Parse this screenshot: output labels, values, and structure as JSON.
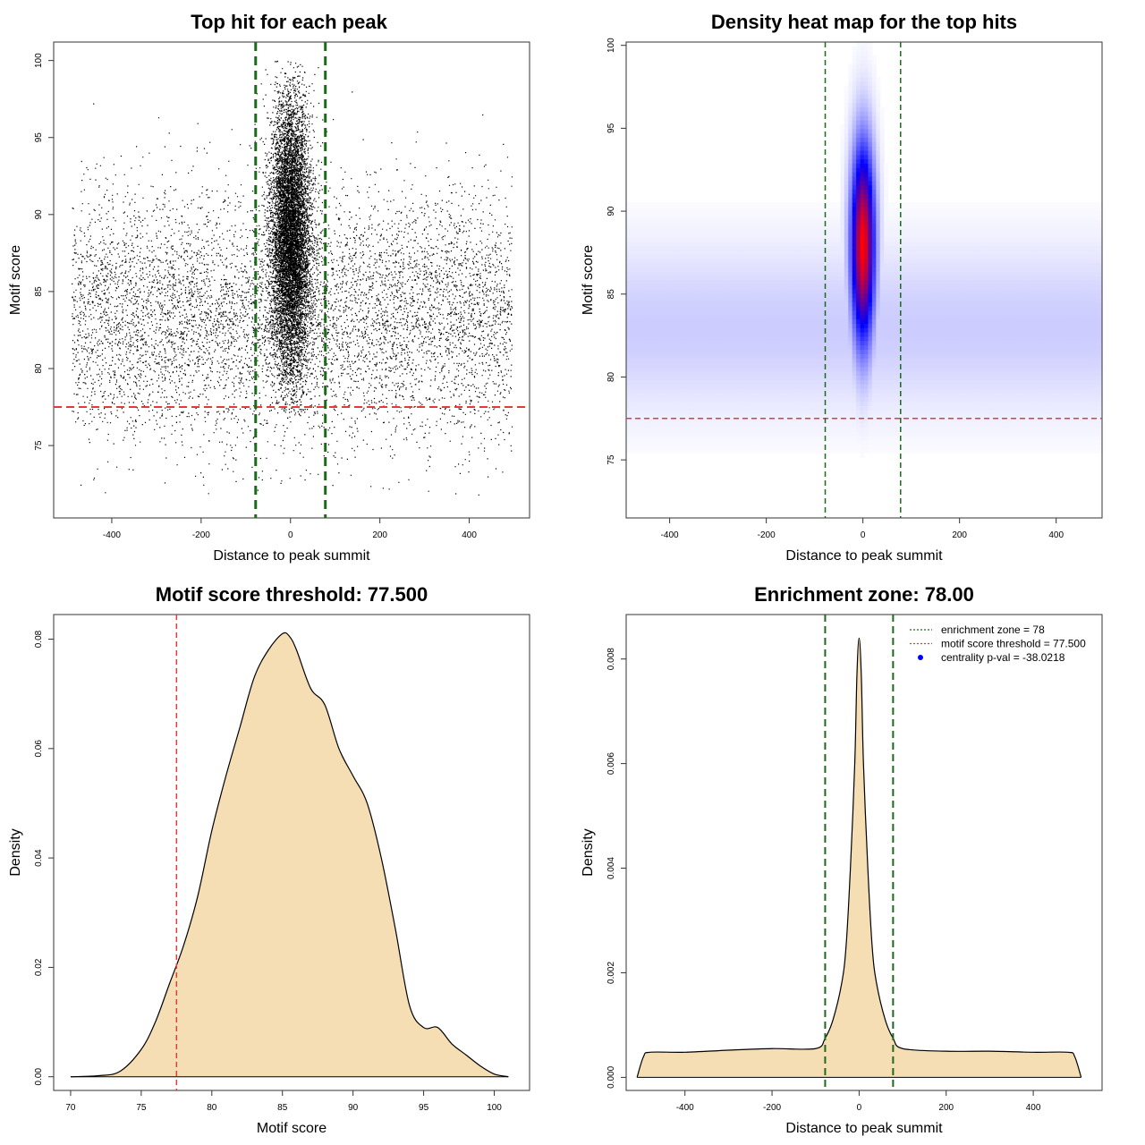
{
  "colors": {
    "threshold": "#e03c3c",
    "zone": "#1a6b1a",
    "fill": "#f5deb3",
    "points": "#000000",
    "heat_low": "#ffffff",
    "heat_mid": "#0000ff",
    "heat_high": "#ff0000",
    "legend_dot": "#0000ff"
  },
  "chart_data": [
    {
      "id": "scatter",
      "type": "scatter",
      "title": "Top hit for each peak",
      "xlabel": "Distance to peak summit",
      "ylabel": "Motif score",
      "xlim": [
        -530,
        535
      ],
      "ylim": [
        70.3,
        101.2
      ],
      "xticks": [
        -400,
        -200,
        0,
        200,
        400
      ],
      "xtick_labels": [
        "-400",
        "-200",
        "0",
        "200",
        "400"
      ],
      "yticks": [
        75,
        80,
        85,
        90,
        95,
        100
      ],
      "ytick_labels": [
        "75",
        "80",
        "85",
        "90",
        "95",
        "100"
      ],
      "hline": 77.5,
      "vlines": [
        -78,
        78
      ],
      "background": {
        "x_range": [
          -490,
          495
        ],
        "y_center": 83.5,
        "y_sd": 4.0,
        "n": 7000
      },
      "center": {
        "x_sd": 22,
        "y_center": 88.5,
        "y_sd": 4.5,
        "y_range": [
          77.0,
          100.0
        ],
        "n": 9000
      }
    },
    {
      "id": "heatmap",
      "type": "heatmap",
      "title": "Density heat map for the top hits",
      "xlabel": "Distance to peak summit",
      "ylabel": "Motif score",
      "xlim": [
        -490,
        495
      ],
      "ylim": [
        71.5,
        100.2
      ],
      "xticks": [
        -400,
        -200,
        0,
        200,
        400
      ],
      "xtick_labels": [
        "-400",
        "-200",
        "0",
        "200",
        "400"
      ],
      "yticks": [
        75,
        80,
        85,
        90,
        95,
        100
      ],
      "ytick_labels": [
        "75",
        "80",
        "85",
        "90",
        "95",
        "100"
      ],
      "hline": 77.5,
      "vlines": [
        -78,
        78
      ],
      "peak": {
        "x": 0,
        "y": 88.0,
        "x_sd": 17,
        "y_sd": 4.2
      },
      "background": {
        "y_center": 83.0,
        "y_sd": 3.5,
        "level": 0.1
      }
    },
    {
      "id": "score-density",
      "type": "area",
      "title": "Motif score threshold: 77.500",
      "xlabel": "Motif score",
      "ylabel": "Density",
      "xlim": [
        68.8,
        102.5
      ],
      "ylim": [
        -0.0025,
        0.0845
      ],
      "xticks": [
        70,
        75,
        80,
        85,
        90,
        95,
        100
      ],
      "xtick_labels": [
        "70",
        "75",
        "80",
        "85",
        "90",
        "95",
        "100"
      ],
      "yticks": [
        0,
        0.02,
        0.04,
        0.06,
        0.08
      ],
      "ytick_labels": [
        "0.00",
        "0.02",
        "0.04",
        "0.06",
        "0.08"
      ],
      "vline": 77.5,
      "x": [
        70,
        72,
        73.5,
        75,
        76,
        77,
        78,
        79,
        80,
        81,
        82,
        83,
        84,
        85,
        85.5,
        86,
        87,
        88,
        89,
        90,
        91,
        92,
        93,
        94,
        95,
        96,
        97,
        98,
        99,
        100,
        101
      ],
      "y": [
        0.0,
        0.0002,
        0.001,
        0.005,
        0.01,
        0.017,
        0.024,
        0.033,
        0.045,
        0.055,
        0.064,
        0.073,
        0.078,
        0.081,
        0.0805,
        0.078,
        0.071,
        0.068,
        0.06,
        0.055,
        0.05,
        0.04,
        0.027,
        0.013,
        0.009,
        0.009,
        0.006,
        0.004,
        0.002,
        0.0005,
        0.0
      ]
    },
    {
      "id": "distance-density",
      "type": "area",
      "title": "Enrichment zone: 78.00",
      "xlabel": "Distance to peak summit",
      "ylabel": "Density",
      "xlim": [
        -535,
        558
      ],
      "ylim": [
        -0.00025,
        0.00885
      ],
      "xticks": [
        -400,
        -200,
        0,
        200,
        400
      ],
      "xtick_labels": [
        "-400",
        "-200",
        "0",
        "200",
        "400"
      ],
      "yticks": [
        0,
        0.002,
        0.004,
        0.006,
        0.008
      ],
      "ytick_labels": [
        "0.000",
        "0.002",
        "0.004",
        "0.006",
        "0.008"
      ],
      "vlines": [
        -78,
        78
      ],
      "x": [
        -510,
        -495,
        -480,
        -400,
        -300,
        -200,
        -100,
        -78,
        -60,
        -40,
        -30,
        -20,
        -10,
        -5,
        0,
        5,
        10,
        20,
        30,
        40,
        60,
        78,
        100,
        200,
        300,
        400,
        480,
        495,
        510
      ],
      "y": [
        0.0,
        0.0004,
        0.00048,
        0.00048,
        0.00052,
        0.00055,
        0.00055,
        0.00075,
        0.0011,
        0.0018,
        0.0025,
        0.004,
        0.006,
        0.0077,
        0.0084,
        0.0077,
        0.006,
        0.004,
        0.0025,
        0.0018,
        0.0011,
        0.00075,
        0.00055,
        0.0005,
        0.0005,
        0.00048,
        0.00048,
        0.0004,
        0.0
      ],
      "legend": [
        {
          "label": "enrichment zone = 78",
          "style": "dotted-line",
          "color": "#1a6b1a"
        },
        {
          "label": "motif score threshold = 77.500",
          "style": "dotted-line",
          "color": "#e03c3c"
        },
        {
          "label": "centrality p-val = -38.0218",
          "style": "dot",
          "color": "#0000ff"
        }
      ]
    }
  ]
}
